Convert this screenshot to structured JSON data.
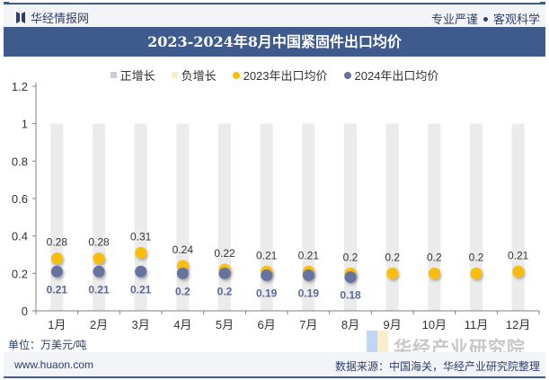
{
  "header": {
    "brand": "华经情报网",
    "slogan_left": "专业严谨",
    "slogan_right": "客观科学"
  },
  "title": "2023-2024年8月中国紧固件出口均价",
  "legend": [
    {
      "label": "正增长",
      "shape": "square",
      "color": "#c9ccd9"
    },
    {
      "label": "负增长",
      "shape": "square",
      "color": "#f7efc4"
    },
    {
      "label": "2023年出口均价",
      "shape": "circle",
      "color": "#fbbd08"
    },
    {
      "label": "2024年出口均价",
      "shape": "circle",
      "color": "#66739f"
    }
  ],
  "footer": {
    "unit": "单位：万美元/吨",
    "website": "www.huaon.com",
    "source": "数据来源：中国海关，华经产业研究院整理",
    "watermark": "华经产业研究院"
  },
  "chart_data": {
    "type": "scatter",
    "title": "2023-2024年8月中国紧固件出口均价",
    "xlabel": "",
    "ylabel": "",
    "unit": "万美元/吨",
    "categories": [
      "1月",
      "2月",
      "3月",
      "4月",
      "5月",
      "6月",
      "7月",
      "8月",
      "9月",
      "10月",
      "11月",
      "12月"
    ],
    "ylim": [
      0,
      1.2
    ],
    "yticks": [
      0,
      0.2,
      0.4,
      0.6,
      0.8,
      1,
      1.2
    ],
    "ytick_labels": [
      "0",
      "0.2",
      "0.4",
      "0.6",
      "0.8",
      "1",
      "1.2"
    ],
    "grid": false,
    "legend_position": "top",
    "background_bars": {
      "name": "增长指示",
      "value": 1,
      "color": "#ebebeb"
    },
    "series": [
      {
        "name": "2023年出口均价",
        "color": "#fbbd08",
        "label_color": "#333333",
        "values": [
          0.28,
          0.28,
          0.31,
          0.24,
          0.22,
          0.21,
          0.21,
          0.2,
          0.2,
          0.2,
          0.2,
          0.21
        ]
      },
      {
        "name": "2024年出口均价",
        "color": "#66739f",
        "label_color": "#5a6796",
        "values": [
          0.21,
          0.21,
          0.21,
          0.2,
          0.2,
          0.19,
          0.19,
          0.18,
          null,
          null,
          null,
          null
        ]
      }
    ]
  }
}
